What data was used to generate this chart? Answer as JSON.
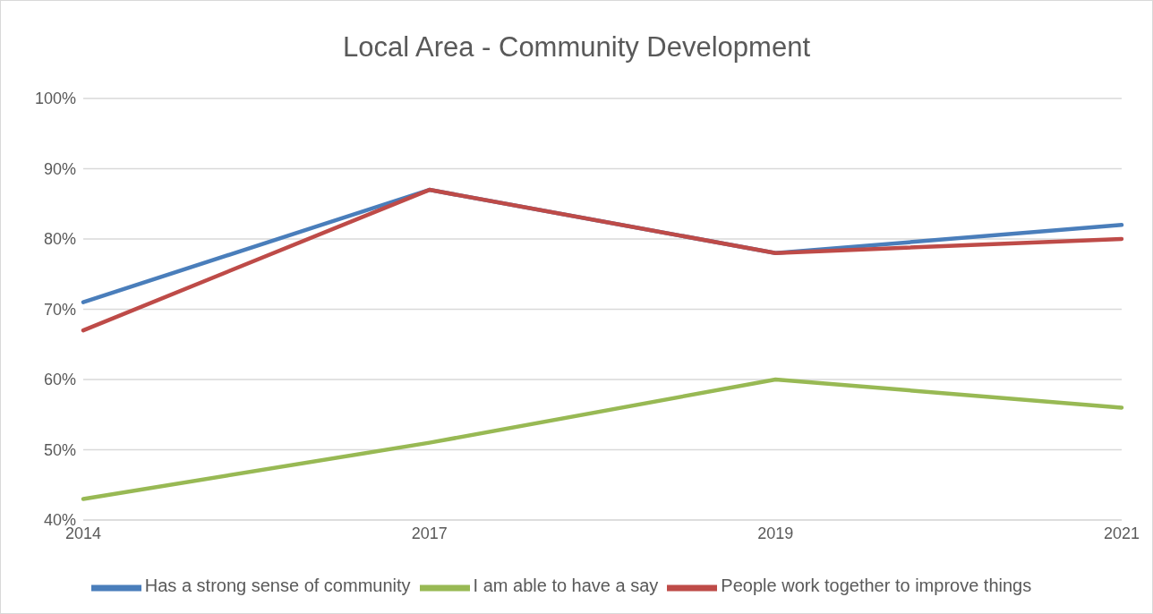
{
  "chart_data": {
    "type": "line",
    "title": "Local Area - Community Development",
    "categories": [
      "2014",
      "2017",
      "2019",
      "2021"
    ],
    "series": [
      {
        "name": "Has a strong sense of community",
        "color": "#4a7ebb",
        "values": [
          71,
          87,
          78,
          82
        ]
      },
      {
        "name": "People work together to improve things",
        "color": "#be4b48",
        "values": [
          67,
          87,
          78,
          80
        ]
      },
      {
        "name": "I am able to have a say",
        "color": "#98b954",
        "values": [
          43,
          51,
          60,
          56
        ]
      }
    ],
    "ylim": [
      40,
      100
    ],
    "yticks": [
      {
        "value": 40,
        "label": "40%"
      },
      {
        "value": 50,
        "label": "50%"
      },
      {
        "value": 60,
        "label": "60%"
      },
      {
        "value": 70,
        "label": "70%"
      },
      {
        "value": 80,
        "label": "80%"
      },
      {
        "value": 90,
        "label": "90%"
      },
      {
        "value": 100,
        "label": "100%"
      }
    ],
    "grid": "y",
    "legend": "bottom",
    "marker": "none",
    "line_style": "solid"
  }
}
